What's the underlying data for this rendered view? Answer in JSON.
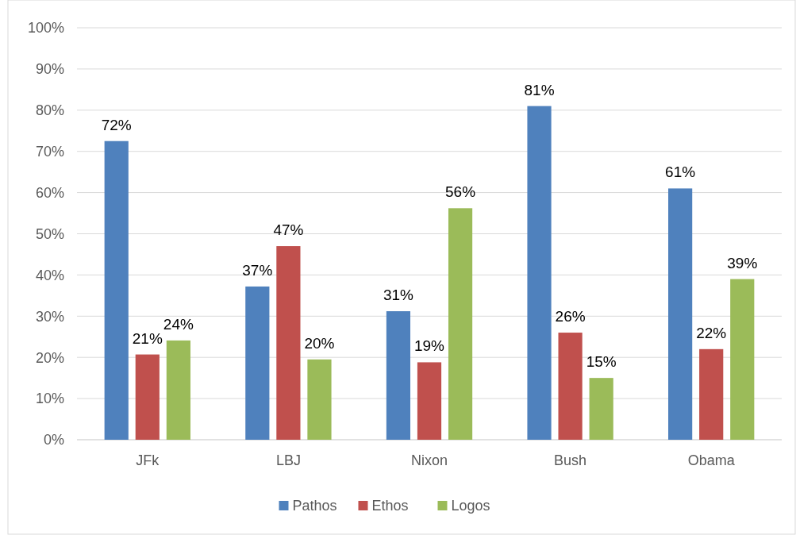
{
  "chart_data": {
    "type": "bar",
    "categories": [
      "JFk",
      "LBJ",
      "Nixon",
      "Bush",
      "Obama"
    ],
    "series": [
      {
        "name": "Pathos",
        "color": "#4f81bd",
        "values": [
          72.5,
          37.2,
          31.2,
          81,
          61
        ],
        "value_labels": [
          "72%",
          "37%",
          "31%",
          "81%",
          "61%"
        ]
      },
      {
        "name": "Ethos",
        "color": "#c0504d",
        "values": [
          20.7,
          47,
          18.8,
          26,
          22
        ],
        "value_labels": [
          "21%",
          "47%",
          "19%",
          "26%",
          "22%"
        ]
      },
      {
        "name": "Logos",
        "color": "#9bbb59",
        "values": [
          24.1,
          19.5,
          56.2,
          15,
          39
        ],
        "value_labels": [
          "24%",
          "20%",
          "56%",
          "15%",
          "39%"
        ]
      }
    ],
    "ylim": [
      0,
      100
    ],
    "yticks": [
      {
        "value": 0,
        "label": "0%"
      },
      {
        "value": 10,
        "label": "10%"
      },
      {
        "value": 20,
        "label": "20%"
      },
      {
        "value": 30,
        "label": "30%"
      },
      {
        "value": 40,
        "label": "40%"
      },
      {
        "value": 50,
        "label": "50%"
      },
      {
        "value": 60,
        "label": "60%"
      },
      {
        "value": 70,
        "label": "70%"
      },
      {
        "value": 80,
        "label": "80%"
      },
      {
        "value": 90,
        "label": "90%"
      },
      {
        "value": 100,
        "label": "100%"
      }
    ],
    "grid": "y",
    "legend": "bottom"
  }
}
